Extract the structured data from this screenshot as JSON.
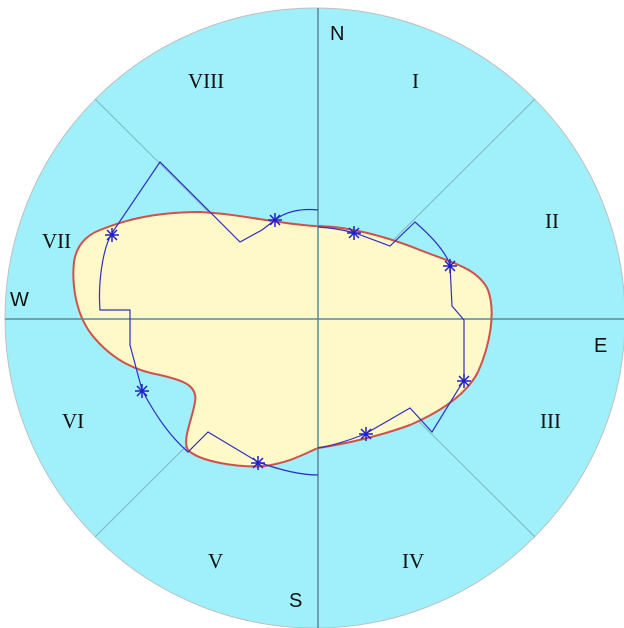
{
  "compass": {
    "north": "N",
    "east": "E",
    "south": "S",
    "west": "W"
  },
  "sectors": [
    {
      "label": "I"
    },
    {
      "label": "II"
    },
    {
      "label": "III"
    },
    {
      "label": "IV"
    },
    {
      "label": "V"
    },
    {
      "label": "VI"
    },
    {
      "label": "VII"
    },
    {
      "label": "VIII"
    }
  ],
  "colors": {
    "disc": "#9ff0fa",
    "disc_outline": "#c0c0c0",
    "axes": "#5a8a96",
    "diagonals": "#7fb6c0",
    "blob_fill": "#fff8c8",
    "blob_outline": "#d0504a",
    "polygon_line": "#3030c0",
    "markers": "#2020c8"
  },
  "icons": {
    "marker": "asterisk-marker-icon"
  }
}
